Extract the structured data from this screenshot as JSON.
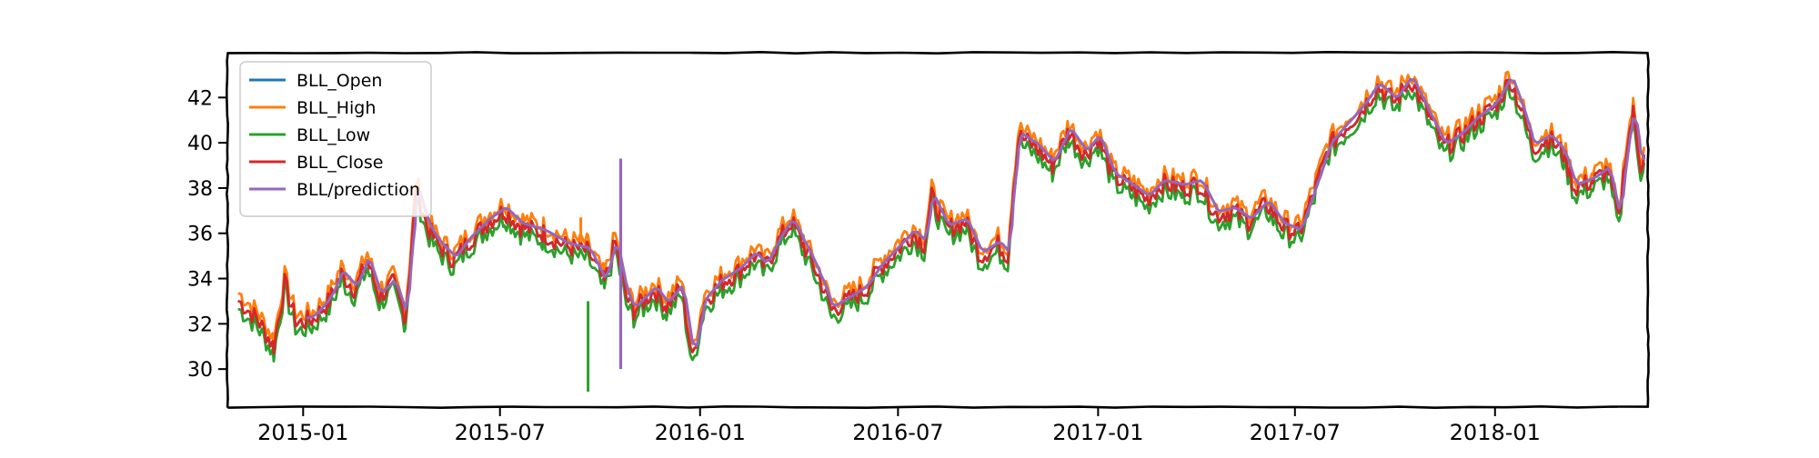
{
  "chart_data": {
    "type": "line",
    "title": "",
    "xlabel": "",
    "ylabel": "",
    "x_range": [
      "2014-10-25",
      "2018-05-20"
    ],
    "ylim": [
      28.4,
      43.9
    ],
    "x_ticks": [
      "2015-01",
      "2015-07",
      "2016-01",
      "2016-07",
      "2017-01",
      "2017-07",
      "2018-01"
    ],
    "y_ticks": [
      "30",
      "32",
      "34",
      "36",
      "38",
      "40",
      "42"
    ],
    "grid": false,
    "legend_position": "top-left",
    "style": "hand-drawn (xkcd)",
    "base_series": {
      "name": "BLL_Close",
      "points": [
        [
          "2014-11-03",
          33.0
        ],
        [
          "2014-11-20",
          32.2
        ],
        [
          "2014-12-05",
          31.0
        ],
        [
          "2014-12-15",
          33.8
        ],
        [
          "2014-12-26",
          32.0
        ],
        [
          "2015-01-10",
          32.2
        ],
        [
          "2015-01-25",
          33.0
        ],
        [
          "2015-02-05",
          34.2
        ],
        [
          "2015-02-18",
          33.5
        ],
        [
          "2015-03-01",
          34.8
        ],
        [
          "2015-03-12",
          33.2
        ],
        [
          "2015-03-25",
          33.8
        ],
        [
          "2015-04-05",
          32.3
        ],
        [
          "2015-04-10",
          35.0
        ],
        [
          "2015-04-15",
          38.0
        ],
        [
          "2015-04-25",
          36.3
        ],
        [
          "2015-05-05",
          35.5
        ],
        [
          "2015-05-20",
          34.8
        ],
        [
          "2015-06-01",
          35.6
        ],
        [
          "2015-06-20",
          36.5
        ],
        [
          "2015-07-05",
          37.0
        ],
        [
          "2015-07-20",
          36.3
        ],
        [
          "2015-08-10",
          36.0
        ],
        [
          "2015-09-01",
          35.4
        ],
        [
          "2015-09-20",
          35.2
        ],
        [
          "2015-10-05",
          33.8
        ],
        [
          "2015-10-15",
          35.6
        ],
        [
          "2015-10-25",
          33.2
        ],
        [
          "2015-11-01",
          32.6
        ],
        [
          "2015-11-10",
          33.0
        ],
        [
          "2015-11-20",
          33.5
        ],
        [
          "2015-12-01",
          32.8
        ],
        [
          "2015-12-15",
          33.6
        ],
        [
          "2015-12-25",
          30.4
        ],
        [
          "2016-01-05",
          33.0
        ],
        [
          "2016-01-20",
          33.8
        ],
        [
          "2016-02-05",
          34.3
        ],
        [
          "2016-02-20",
          35.0
        ],
        [
          "2016-03-01",
          34.5
        ],
        [
          "2016-03-15",
          35.8
        ],
        [
          "2016-03-25",
          36.5
        ],
        [
          "2016-04-05",
          35.5
        ],
        [
          "2016-04-20",
          34.0
        ],
        [
          "2016-05-01",
          32.6
        ],
        [
          "2016-05-15",
          33.0
        ],
        [
          "2016-06-01",
          33.5
        ],
        [
          "2016-06-15",
          34.5
        ],
        [
          "2016-07-01",
          35.3
        ],
        [
          "2016-07-15",
          36.0
        ],
        [
          "2016-07-25",
          35.5
        ],
        [
          "2016-08-01",
          37.6
        ],
        [
          "2016-08-15",
          36.2
        ],
        [
          "2016-09-01",
          36.5
        ],
        [
          "2016-09-15",
          35.0
        ],
        [
          "2016-10-01",
          35.5
        ],
        [
          "2016-10-10",
          35.0
        ],
        [
          "2016-10-15",
          38.0
        ],
        [
          "2016-10-20",
          40.3
        ],
        [
          "2016-11-05",
          39.8
        ],
        [
          "2016-11-20",
          39.0
        ],
        [
          "2016-12-05",
          40.5
        ],
        [
          "2016-12-20",
          39.5
        ],
        [
          "2017-01-01",
          40.2
        ],
        [
          "2017-01-15",
          38.5
        ],
        [
          "2017-02-01",
          38.0
        ],
        [
          "2017-02-15",
          37.5
        ],
        [
          "2017-03-01",
          38.2
        ],
        [
          "2017-03-20",
          38.0
        ],
        [
          "2017-04-05",
          38.2
        ],
        [
          "2017-04-20",
          36.8
        ],
        [
          "2017-05-05",
          37.0
        ],
        [
          "2017-05-20",
          36.5
        ],
        [
          "2017-06-05",
          37.3
        ],
        [
          "2017-06-20",
          36.3
        ],
        [
          "2017-07-05",
          36.0
        ],
        [
          "2017-07-20",
          38.0
        ],
        [
          "2017-08-01",
          39.8
        ],
        [
          "2017-08-15",
          40.6
        ],
        [
          "2017-09-01",
          41.5
        ],
        [
          "2017-09-15",
          42.5
        ],
        [
          "2017-10-01",
          41.8
        ],
        [
          "2017-10-15",
          42.8
        ],
        [
          "2017-11-01",
          41.2
        ],
        [
          "2017-11-15",
          39.8
        ],
        [
          "2017-12-01",
          40.3
        ],
        [
          "2017-12-15",
          41.0
        ],
        [
          "2018-01-01",
          41.6
        ],
        [
          "2018-01-15",
          42.8
        ],
        [
          "2018-01-25",
          41.5
        ],
        [
          "2018-02-05",
          39.8
        ],
        [
          "2018-02-20",
          40.2
        ],
        [
          "2018-03-05",
          39.5
        ],
        [
          "2018-03-15",
          38.0
        ],
        [
          "2018-04-01",
          38.3
        ],
        [
          "2018-04-15",
          38.8
        ],
        [
          "2018-04-25",
          36.5
        ],
        [
          "2018-05-01",
          39.5
        ],
        [
          "2018-05-08",
          41.3
        ],
        [
          "2018-05-15",
          39.0
        ],
        [
          "2018-05-18",
          39.3
        ]
      ]
    },
    "series": [
      {
        "name": "BLL_Open",
        "color": "#1f77b4",
        "offset": 0.0
      },
      {
        "name": "BLL_High",
        "color": "#ff7f0e",
        "offset": 0.35
      },
      {
        "name": "BLL_Low",
        "color": "#2ca02c",
        "offset": -0.35
      },
      {
        "name": "BLL_Close",
        "color": "#d62728",
        "offset": 0.0
      },
      {
        "name": "BLL/prediction",
        "color": "#9467bd",
        "offset": 0.15,
        "start": "2015-01-05"
      }
    ],
    "annotations": {
      "low_spike": {
        "x": "2015-09-20",
        "y": 29.0
      },
      "high_spike": {
        "x": "2015-09-20",
        "y": 36.7
      },
      "prediction_spike": {
        "x": "2015-10-20",
        "y_top": 39.3,
        "y_bottom": 30.0
      }
    }
  }
}
